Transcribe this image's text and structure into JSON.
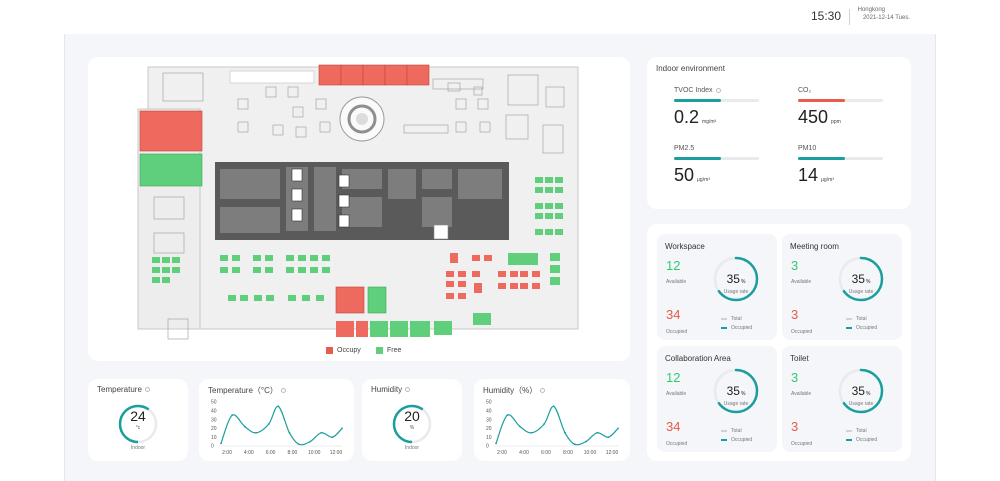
{
  "header": {
    "time": "15:30",
    "city": "Hongkong",
    "date": "2021-12-14  Tues."
  },
  "colors": {
    "teal": "#1a9e9e",
    "red": "#e85b4f",
    "green": "#2ecc71",
    "ring_track": "#e8eaed"
  },
  "floor_plan": {
    "legend": [
      {
        "label": "Occupy",
        "color": "#e85b4f"
      },
      {
        "label": "Free",
        "color": "#5fcf7b"
      }
    ]
  },
  "environment": {
    "title": "Indoor environment",
    "items": [
      {
        "label": "TVOC Index",
        "value": "0.2",
        "unit": "mg/m³",
        "level": 0.55,
        "bar_color": "#1a9e9e",
        "info_icon": "info-icon"
      },
      {
        "label": "CO₂",
        "value": "450",
        "unit": "ppm",
        "level": 0.55,
        "bar_color": "#e85b4f",
        "info_icon": ""
      },
      {
        "label": "PM2.5",
        "value": "50",
        "unit": "μg/m³",
        "level": 0.55,
        "bar_color": "#1a9e9e",
        "info_icon": ""
      },
      {
        "label": "PM10",
        "value": "14",
        "unit": "μg/m³",
        "level": 0.55,
        "bar_color": "#1a9e9e",
        "info_icon": ""
      }
    ]
  },
  "occupancy": [
    {
      "title": "Workspace",
      "available": "12",
      "available_label": "Available",
      "occupied": "34",
      "occupied_label": "Occupied",
      "usage": "35",
      "usage_unit": "%",
      "usage_label": "Usage rate",
      "usage_fraction": 0.35,
      "legend_total": "Total",
      "legend_occupied": "Occupied"
    },
    {
      "title": "Meeting room",
      "available": "3",
      "available_label": "Available",
      "occupied": "3",
      "occupied_label": "Occupied",
      "usage": "35",
      "usage_unit": "%",
      "usage_label": "Usage rate",
      "usage_fraction": 0.35,
      "legend_total": "Total",
      "legend_occupied": "Occupied"
    },
    {
      "title": "Collaboration Area",
      "available": "12",
      "available_label": "Available",
      "occupied": "34",
      "occupied_label": "Occupied",
      "usage": "35",
      "usage_unit": "%",
      "usage_label": "Usage rate",
      "usage_fraction": 0.35,
      "legend_total": "Total",
      "legend_occupied": "Occupied"
    },
    {
      "title": "Toilet",
      "available": "3",
      "available_label": "Available",
      "occupied": "3",
      "occupied_label": "Occupied",
      "usage": "35",
      "usage_unit": "%",
      "usage_label": "Usage rate",
      "usage_fraction": 0.35,
      "legend_total": "Total",
      "legend_occupied": "Occupied"
    }
  ],
  "temperature_gauge": {
    "title": "Temperature",
    "value": "24",
    "unit": "°c",
    "sublabel": "Indoor",
    "fraction": 0.6
  },
  "humidity_gauge": {
    "title": "Humidity",
    "value": "20",
    "unit": "%",
    "sublabel": "Indoor",
    "fraction": 0.6
  },
  "chart_data": [
    {
      "type": "line",
      "title": "Temperature（°C）",
      "categories": [
        "2:00",
        "4:00",
        "6:00",
        "8:00",
        "10:00",
        "12:00"
      ],
      "yticks": [
        "0",
        "10",
        "20",
        "30",
        "40",
        "50"
      ],
      "ylim": [
        0,
        50
      ],
      "x": [
        0,
        0.7,
        1.5,
        2.2,
        3.0,
        3.6,
        4.3,
        4.9,
        5.6,
        6.3,
        7.0,
        7.6
      ],
      "values": [
        3,
        35,
        22,
        15,
        25,
        45,
        15,
        2,
        5,
        15,
        10,
        20
      ]
    },
    {
      "type": "line",
      "title": "Humidity（%）",
      "categories": [
        "2:00",
        "4:00",
        "6:00",
        "8:00",
        "10:00",
        "12:00"
      ],
      "yticks": [
        "0",
        "10",
        "20",
        "30",
        "40",
        "50"
      ],
      "ylim": [
        0,
        50
      ],
      "x": [
        0,
        0.7,
        1.5,
        2.2,
        3.0,
        3.6,
        4.3,
        4.9,
        5.6,
        6.3,
        7.0,
        7.6
      ],
      "values": [
        3,
        35,
        22,
        15,
        25,
        45,
        15,
        2,
        5,
        15,
        10,
        20
      ]
    }
  ]
}
